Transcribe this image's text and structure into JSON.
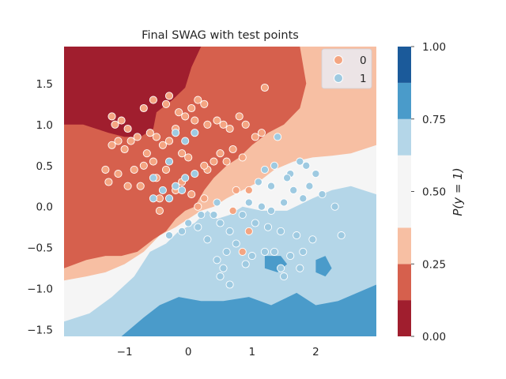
{
  "chart_data": {
    "type": "scatter",
    "title": "Final SWAG with test points",
    "xlim": [
      -1.95,
      2.95
    ],
    "ylim": [
      -1.58,
      1.95
    ],
    "x_ticks": [
      -1,
      0,
      1,
      2
    ],
    "x_tick_labels": [
      "−1",
      "0",
      "1",
      "2"
    ],
    "y_ticks": [
      -1.5,
      -1.0,
      -0.5,
      0.0,
      0.5,
      1.0,
      1.5
    ],
    "y_tick_labels": [
      "−1.5",
      "−1.0",
      "−0.5",
      "0.0",
      "0.5",
      "1.0",
      "1.5"
    ],
    "grid": false,
    "legend": {
      "placement": "top-right",
      "entries": [
        {
          "label": "0",
          "color": "#f4a582"
        },
        {
          "label": "1",
          "color": "#9ecae1"
        }
      ]
    },
    "colorbar": {
      "label": "P(y = 1)",
      "ticks": [
        0.0,
        0.25,
        0.5,
        0.75,
        1.0
      ],
      "tick_labels": [
        "0.00",
        "0.25",
        "0.50",
        "0.75",
        "1.00"
      ],
      "bands": [
        {
          "from": 0.0,
          "to": 0.125,
          "color": "#a01e2e"
        },
        {
          "from": 0.125,
          "to": 0.25,
          "color": "#d6604d"
        },
        {
          "from": 0.25,
          "to": 0.375,
          "color": "#f7bfa3"
        },
        {
          "from": 0.375,
          "to": 0.625,
          "color": "#f5f5f5"
        },
        {
          "from": 0.625,
          "to": 0.75,
          "color": "#b4d6e8"
        },
        {
          "from": 0.75,
          "to": 0.875,
          "color": "#4a9bca"
        },
        {
          "from": 0.875,
          "to": 1.0,
          "color": "#1b5a9a"
        }
      ]
    },
    "series": [
      {
        "name": "0",
        "color": "#f4a582",
        "points": [
          [
            -1.2,
            1.1
          ],
          [
            -1.15,
            1.0
          ],
          [
            -1.05,
            1.05
          ],
          [
            -0.95,
            0.95
          ],
          [
            -0.8,
            0.85
          ],
          [
            -0.9,
            0.8
          ],
          [
            -1.0,
            0.7
          ],
          [
            -1.1,
            0.8
          ],
          [
            -1.2,
            0.75
          ],
          [
            -0.7,
            1.2
          ],
          [
            -0.55,
            1.3
          ],
          [
            -0.35,
            1.25
          ],
          [
            -0.3,
            1.35
          ],
          [
            -0.15,
            1.15
          ],
          [
            -0.05,
            1.1
          ],
          [
            0.05,
            1.2
          ],
          [
            0.1,
            1.05
          ],
          [
            0.15,
            1.3
          ],
          [
            0.25,
            1.25
          ],
          [
            0.3,
            1.0
          ],
          [
            0.45,
            1.05
          ],
          [
            0.55,
            1.0
          ],
          [
            0.65,
            0.95
          ],
          [
            0.8,
            1.1
          ],
          [
            0.9,
            1.0
          ],
          [
            1.05,
            0.85
          ],
          [
            1.15,
            0.9
          ],
          [
            1.2,
            1.45
          ],
          [
            0.85,
            0.6
          ],
          [
            0.7,
            0.7
          ],
          [
            0.6,
            0.55
          ],
          [
            0.5,
            0.65
          ],
          [
            0.4,
            0.55
          ],
          [
            0.3,
            0.45
          ],
          [
            0.25,
            0.5
          ],
          [
            -0.6,
            0.9
          ],
          [
            -0.5,
            0.85
          ],
          [
            -0.4,
            0.75
          ],
          [
            -0.3,
            0.8
          ],
          [
            -0.2,
            0.95
          ],
          [
            -0.1,
            0.65
          ],
          [
            0.0,
            0.6
          ],
          [
            -0.65,
            0.65
          ],
          [
            -0.55,
            0.55
          ],
          [
            -0.7,
            0.5
          ],
          [
            -0.85,
            0.45
          ],
          [
            -0.95,
            0.25
          ],
          [
            -0.75,
            0.25
          ],
          [
            -0.5,
            0.35
          ],
          [
            -0.45,
            0.1
          ],
          [
            -0.2,
            0.2
          ],
          [
            -0.1,
            0.3
          ],
          [
            0.05,
            0.15
          ],
          [
            0.15,
            0.0
          ],
          [
            0.25,
            0.1
          ],
          [
            -1.25,
            0.3
          ],
          [
            -1.3,
            0.45
          ],
          [
            -1.1,
            0.4
          ],
          [
            -0.45,
            -0.05
          ],
          [
            -0.35,
            0.45
          ],
          [
            0.7,
            -0.05
          ],
          [
            0.75,
            0.2
          ],
          [
            0.95,
            0.2
          ],
          [
            0.95,
            -0.3
          ],
          [
            0.85,
            -0.55
          ]
        ]
      },
      {
        "name": "1",
        "color": "#9ecae1",
        "points": [
          [
            1.4,
            0.85
          ],
          [
            1.75,
            0.55
          ],
          [
            1.85,
            0.5
          ],
          [
            1.6,
            0.4
          ],
          [
            1.35,
            0.5
          ],
          [
            1.2,
            0.45
          ],
          [
            1.1,
            0.3
          ],
          [
            1.3,
            0.25
          ],
          [
            1.55,
            0.35
          ],
          [
            1.65,
            0.2
          ],
          [
            1.9,
            0.25
          ],
          [
            2.0,
            0.4
          ],
          [
            1.8,
            0.1
          ],
          [
            2.1,
            0.15
          ],
          [
            2.3,
            0.0
          ],
          [
            1.5,
            0.05
          ],
          [
            1.3,
            -0.05
          ],
          [
            1.15,
            0.0
          ],
          [
            0.95,
            0.05
          ],
          [
            0.85,
            -0.1
          ],
          [
            1.05,
            -0.2
          ],
          [
            1.25,
            -0.25
          ],
          [
            1.45,
            -0.3
          ],
          [
            1.7,
            -0.35
          ],
          [
            1.95,
            -0.4
          ],
          [
            2.4,
            -0.35
          ],
          [
            0.5,
            -0.2
          ],
          [
            0.65,
            -0.3
          ],
          [
            0.75,
            -0.45
          ],
          [
            0.6,
            -0.55
          ],
          [
            0.45,
            -0.65
          ],
          [
            0.3,
            -0.4
          ],
          [
            0.15,
            -0.25
          ],
          [
            0.0,
            -0.2
          ],
          [
            -0.1,
            -0.3
          ],
          [
            -0.3,
            -0.35
          ],
          [
            0.55,
            -0.75
          ],
          [
            0.5,
            -0.85
          ],
          [
            0.65,
            -0.95
          ],
          [
            0.9,
            -0.7
          ],
          [
            1.0,
            -0.6
          ],
          [
            1.2,
            -0.55
          ],
          [
            1.35,
            -0.55
          ],
          [
            1.45,
            -0.75
          ],
          [
            1.6,
            -0.6
          ],
          [
            1.8,
            -0.55
          ],
          [
            1.5,
            -0.85
          ],
          [
            1.75,
            -0.75
          ],
          [
            -0.05,
            0.8
          ],
          [
            -0.3,
            0.55
          ],
          [
            -0.4,
            0.2
          ],
          [
            -0.55,
            0.35
          ],
          [
            -0.3,
            0.1
          ],
          [
            -0.2,
            0.25
          ],
          [
            -0.05,
            0.35
          ],
          [
            0.1,
            0.4
          ],
          [
            -0.55,
            0.1
          ],
          [
            0.1,
            0.9
          ],
          [
            -0.2,
            0.9
          ],
          [
            -0.1,
            0.2
          ],
          [
            0.2,
            -0.1
          ],
          [
            0.4,
            -0.1
          ],
          [
            0.45,
            0.05
          ]
        ]
      }
    ]
  },
  "regions": [
    {
      "level": "light_blue",
      "color": "#b4d6e8",
      "pts": [
        [
          -1.95,
          -1.58
        ],
        [
          2.95,
          -1.58
        ],
        [
          2.95,
          0.15
        ],
        [
          2.55,
          0.25
        ],
        [
          2.25,
          0.2
        ],
        [
          1.95,
          0.1
        ],
        [
          1.55,
          -0.05
        ],
        [
          1.15,
          -0.05
        ],
        [
          0.85,
          0.0
        ],
        [
          0.65,
          -0.1
        ],
        [
          0.45,
          -0.15
        ],
        [
          0.3,
          -0.05
        ],
        [
          0.1,
          -0.2
        ],
        [
          -0.15,
          -0.3
        ],
        [
          -0.35,
          -0.45
        ],
        [
          -0.6,
          -0.55
        ],
        [
          -0.85,
          -0.85
        ],
        [
          -1.2,
          -1.1
        ],
        [
          -1.55,
          -1.3
        ],
        [
          -1.95,
          -1.4
        ]
      ]
    },
    {
      "level": "mid_blue",
      "color": "#4a9bca",
      "pts": [
        [
          -1.05,
          -1.58
        ],
        [
          -0.7,
          -1.35
        ],
        [
          -0.45,
          -1.2
        ],
        [
          -0.15,
          -1.1
        ],
        [
          0.2,
          -1.15
        ],
        [
          0.55,
          -1.15
        ],
        [
          0.95,
          -1.1
        ],
        [
          1.3,
          -1.2
        ],
        [
          1.7,
          -1.05
        ],
        [
          2.0,
          -1.2
        ],
        [
          2.35,
          -1.15
        ],
        [
          2.65,
          -1.05
        ],
        [
          2.95,
          -0.95
        ],
        [
          2.95,
          -1.58
        ]
      ]
    },
    {
      "level": "mid_blue_patch",
      "color": "#4a9bca",
      "pts": [
        [
          2.0,
          -0.65
        ],
        [
          2.15,
          -0.6
        ],
        [
          2.25,
          -0.75
        ],
        [
          2.15,
          -0.85
        ],
        [
          2.0,
          -0.8
        ]
      ]
    },
    {
      "level": "mid_blue_patch2",
      "color": "#4a9bca",
      "pts": [
        [
          1.2,
          -0.6
        ],
        [
          1.45,
          -0.6
        ],
        [
          1.55,
          -0.7
        ],
        [
          1.4,
          -0.8
        ],
        [
          1.2,
          -0.75
        ]
      ]
    },
    {
      "level": "light_red",
      "color": "#f7bfa3",
      "pts": [
        [
          -1.95,
          1.95
        ],
        [
          2.95,
          1.95
        ],
        [
          2.95,
          0.75
        ],
        [
          2.55,
          0.65
        ],
        [
          2.25,
          0.62
        ],
        [
          1.95,
          0.6
        ],
        [
          1.65,
          0.55
        ],
        [
          1.35,
          0.45
        ],
        [
          1.1,
          0.3
        ],
        [
          0.85,
          0.2
        ],
        [
          0.6,
          0.1
        ],
        [
          0.4,
          0.0
        ],
        [
          0.2,
          -0.05
        ],
        [
          0.0,
          -0.15
        ],
        [
          -0.2,
          -0.25
        ],
        [
          -0.45,
          -0.35
        ],
        [
          -0.7,
          -0.55
        ],
        [
          -1.0,
          -0.7
        ],
        [
          -1.3,
          -0.8
        ],
        [
          -1.6,
          -0.85
        ],
        [
          -1.95,
          -0.9
        ]
      ]
    },
    {
      "level": "mid_red",
      "color": "#d6604d",
      "pts": [
        [
          -1.95,
          1.95
        ],
        [
          1.75,
          1.95
        ],
        [
          1.85,
          1.5
        ],
        [
          1.75,
          1.2
        ],
        [
          1.5,
          1.0
        ],
        [
          1.25,
          0.9
        ],
        [
          1.0,
          0.75
        ],
        [
          0.8,
          0.6
        ],
        [
          0.6,
          0.5
        ],
        [
          0.4,
          0.35
        ],
        [
          0.25,
          0.2
        ],
        [
          0.1,
          0.0
        ],
        [
          -0.05,
          -0.05
        ],
        [
          -0.2,
          -0.15
        ],
        [
          -0.35,
          -0.3
        ],
        [
          -0.55,
          -0.4
        ],
        [
          -0.8,
          -0.55
        ],
        [
          -1.05,
          -0.6
        ],
        [
          -1.3,
          -0.6
        ],
        [
          -1.6,
          -0.65
        ],
        [
          -1.95,
          -0.75
        ]
      ]
    },
    {
      "level": "dark_red",
      "color": "#a01e2e",
      "pts": [
        [
          -1.95,
          1.95
        ],
        [
          0.2,
          1.95
        ],
        [
          0.05,
          1.7
        ],
        [
          -0.05,
          1.45
        ],
        [
          -0.25,
          1.3
        ],
        [
          -0.5,
          1.15
        ],
        [
          -0.55,
          0.95
        ],
        [
          -0.75,
          0.85
        ],
        [
          -1.0,
          0.85
        ],
        [
          -1.25,
          0.9
        ],
        [
          -1.45,
          0.95
        ],
        [
          -1.65,
          1.0
        ],
        [
          -1.95,
          1.0
        ]
      ]
    }
  ]
}
